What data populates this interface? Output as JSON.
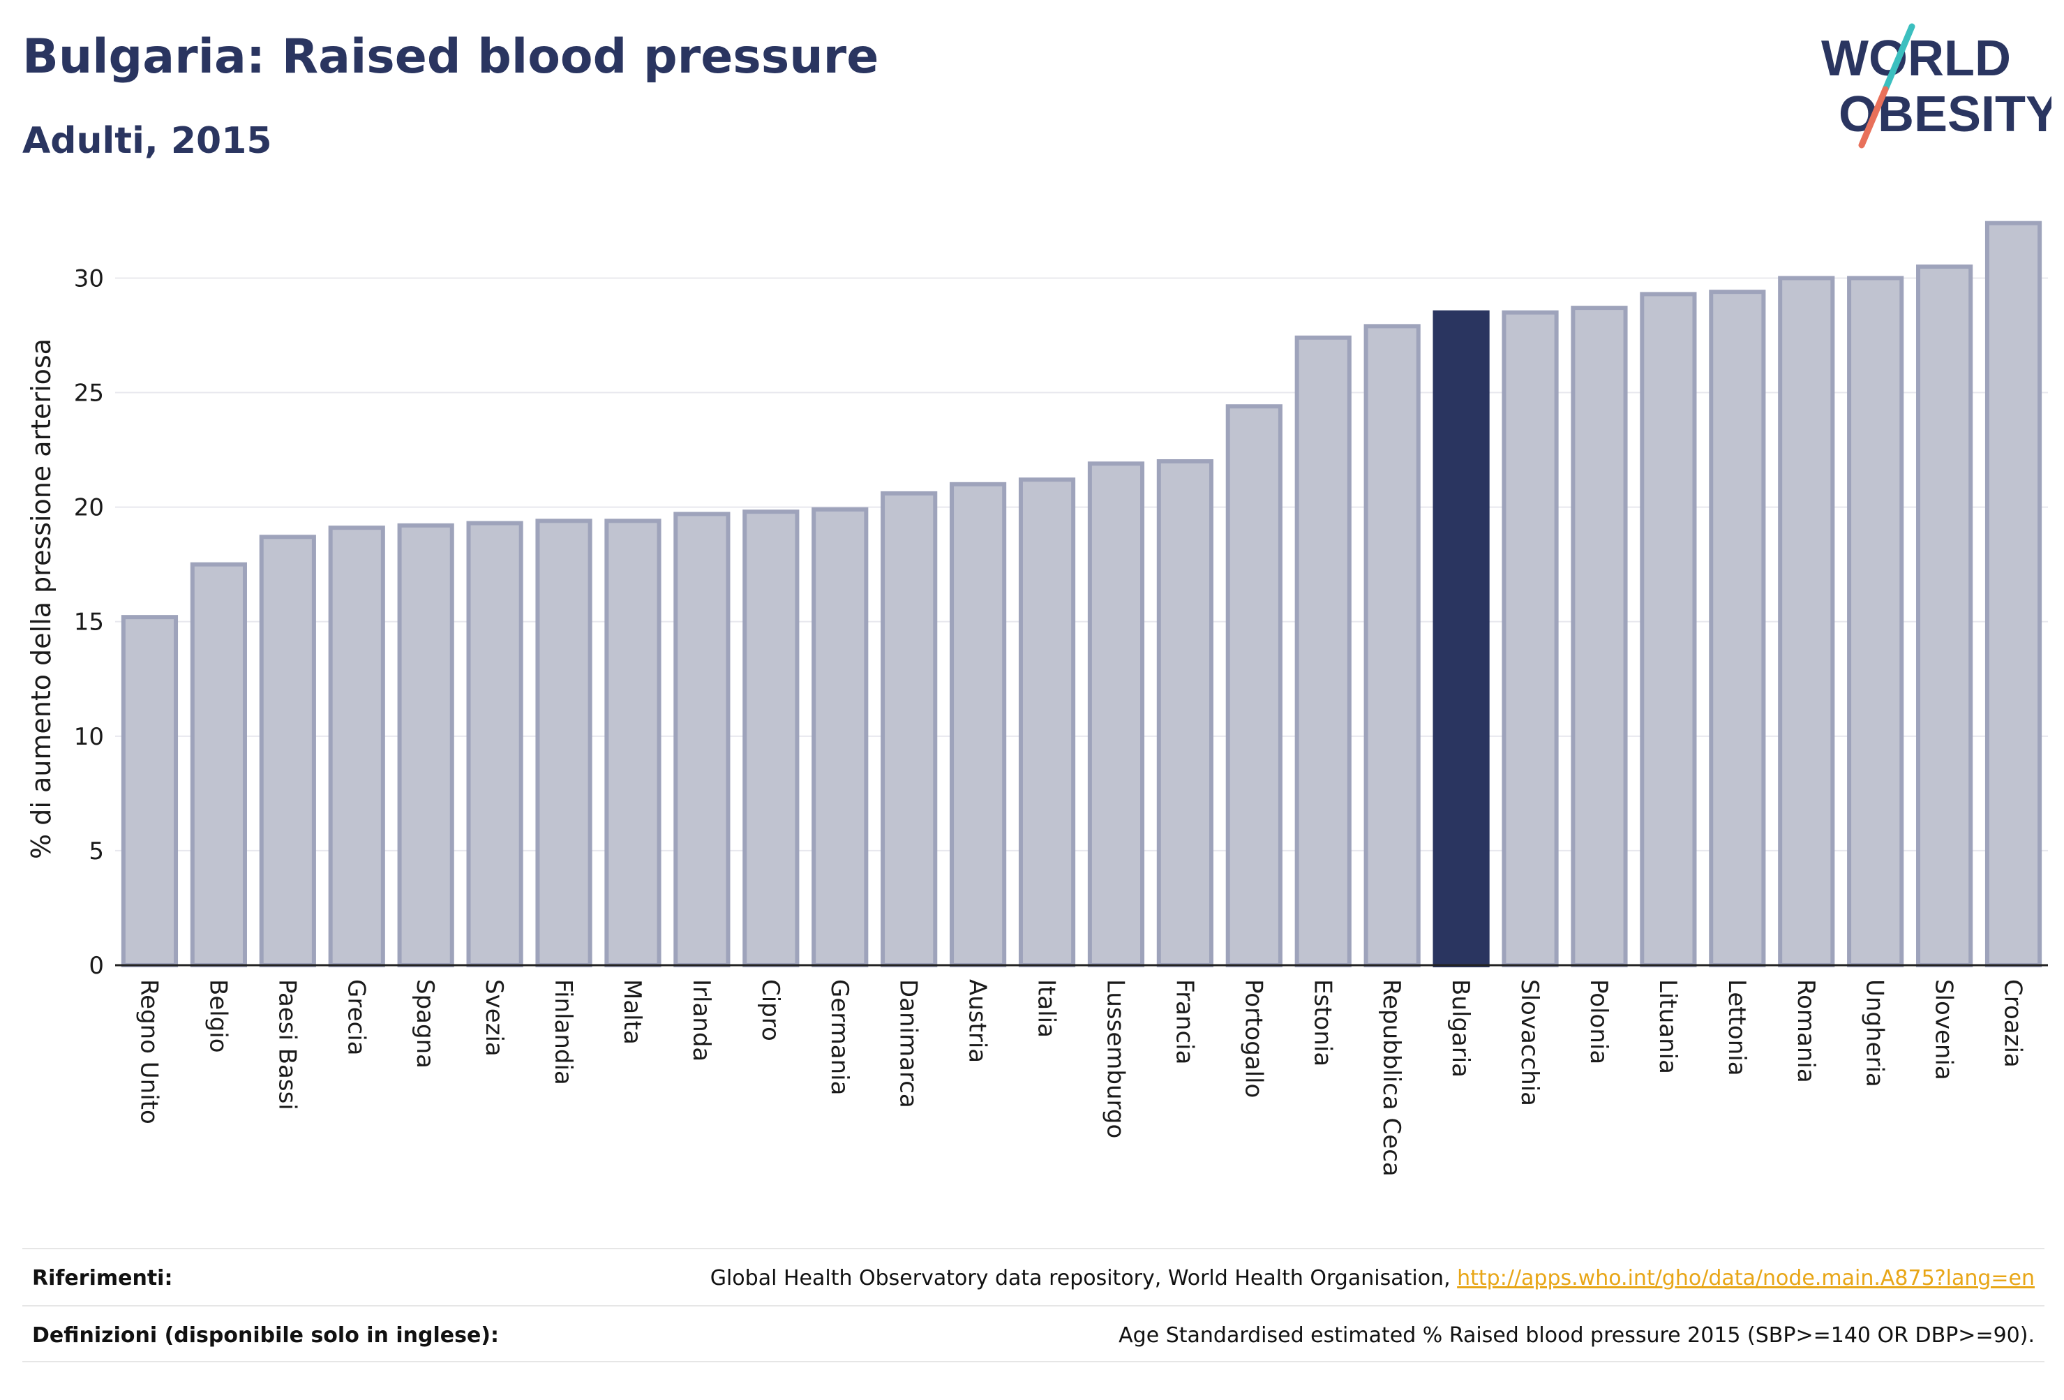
{
  "header": {
    "title": "Bulgaria: Raised blood pressure",
    "subtitle": "Adulti, 2015"
  },
  "logo": {
    "line1": "WORLD",
    "line2": "OBESITY",
    "colors": {
      "text": "#2a3560",
      "slash_top": "#3bbfbf",
      "slash_bottom": "#e8705a"
    }
  },
  "colors": {
    "bar_fill": "#c0c3d0",
    "bar_stroke": "#9ea3bb",
    "highlight": "#2a3560",
    "grid": "#e8e8ee",
    "axis": "#222222"
  },
  "chart_data": {
    "type": "bar",
    "ylabel": "% di aumento della pressione arteriosa",
    "ylim": [
      0,
      33
    ],
    "yticks": [
      0,
      5,
      10,
      15,
      20,
      25,
      30
    ],
    "grid": true,
    "highlight": "Bulgaria",
    "categories": [
      "Regno Unito",
      "Belgio",
      "Paesi Bassi",
      "Grecia",
      "Spagna",
      "Svezia",
      "Finlandia",
      "Malta",
      "Irlanda",
      "Cipro",
      "Germania",
      "Danimarca",
      "Austria",
      "Italia",
      "Lussemburgo",
      "Francia",
      "Portogallo",
      "Estonia",
      "Repubblica Ceca",
      "Bulgaria",
      "Slovacchia",
      "Polonia",
      "Lituania",
      "Lettonia",
      "Romania",
      "Ungheria",
      "Slovenia",
      "Croazia"
    ],
    "values": [
      15.2,
      17.5,
      18.7,
      19.1,
      19.2,
      19.3,
      19.4,
      19.4,
      19.7,
      19.8,
      19.9,
      20.6,
      21.0,
      21.2,
      21.9,
      22.0,
      24.4,
      27.4,
      27.9,
      28.5,
      28.5,
      28.7,
      29.3,
      29.4,
      30.0,
      30.0,
      30.5,
      32.4
    ]
  },
  "footer": {
    "references_label": "Riferimenti:",
    "references_text": "Global Health Observatory data repository, World Health Organisation, ",
    "references_link": "http://apps.who.int/gho/data/node.main.A875?lang=en",
    "definitions_label": "Definizioni (disponibile solo in inglese):",
    "definitions_text": "Age Standardised estimated % Raised blood pressure 2015 (SBP>=140 OR DBP>=90)."
  }
}
